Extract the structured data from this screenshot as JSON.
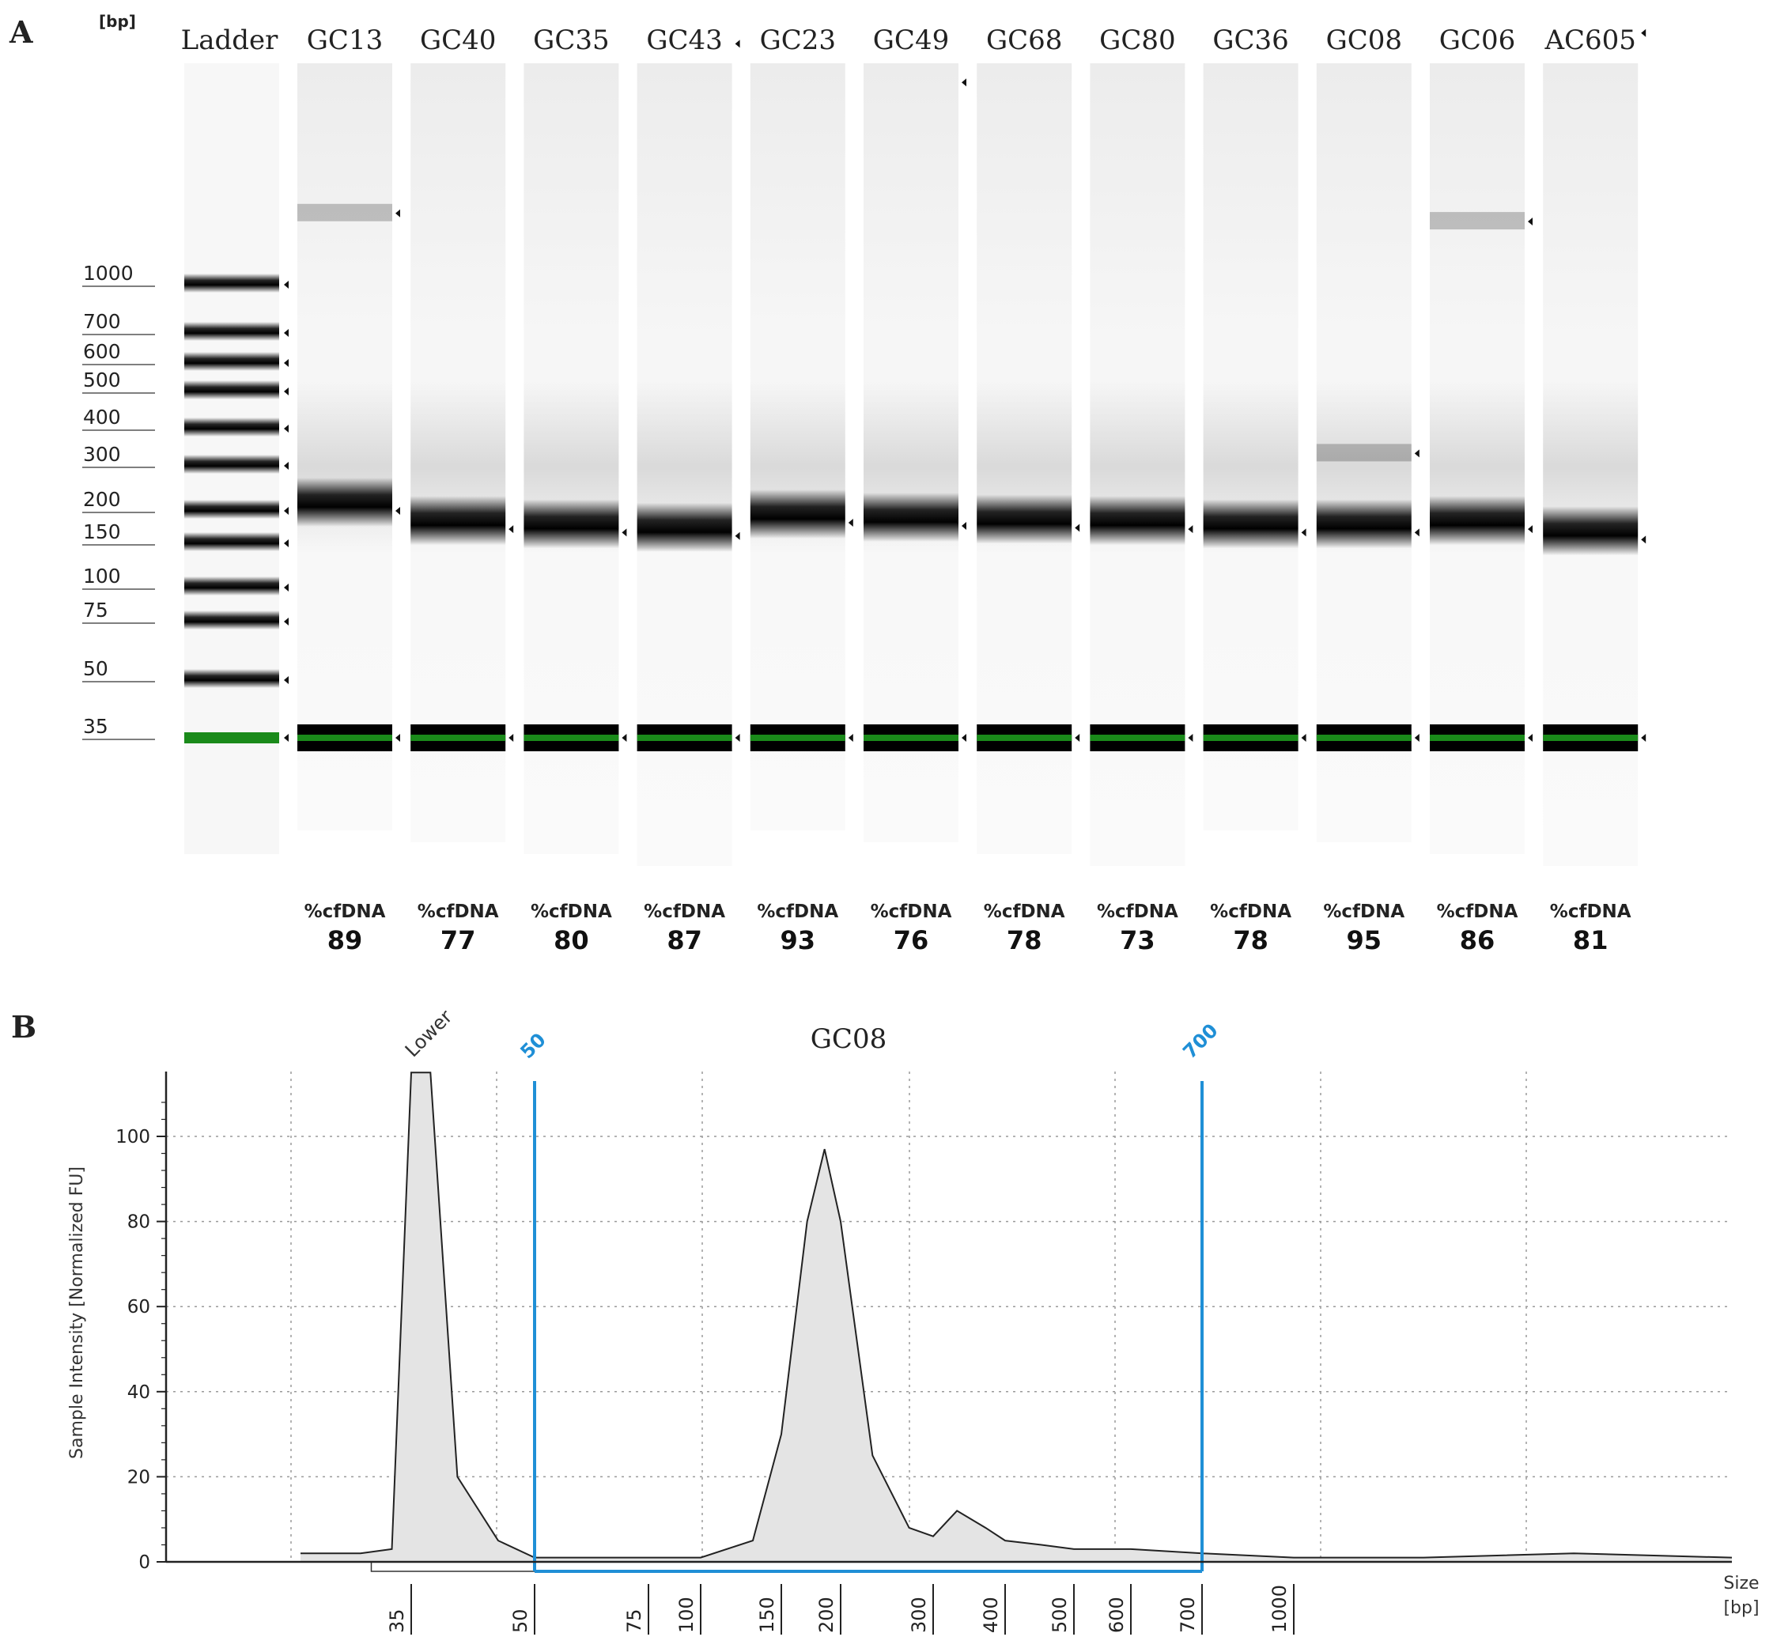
{
  "panel_a": {
    "panel_letter": "A",
    "unit_label": "[bp]",
    "ladder_lane_label": "Ladder",
    "size_labels": [
      "1000",
      "700",
      "600",
      "500",
      "400",
      "300",
      "200",
      "150",
      "100",
      "75",
      "50",
      "35"
    ],
    "lanes": [
      {
        "name": "GC13",
        "cfdna_label": "%cfDNA",
        "cfdna_value": "89"
      },
      {
        "name": "GC40",
        "cfdna_label": "%cfDNA",
        "cfdna_value": "77"
      },
      {
        "name": "GC35",
        "cfdna_label": "%cfDNA",
        "cfdna_value": "80"
      },
      {
        "name": "GC43",
        "cfdna_label": "%cfDNA",
        "cfdna_value": "87"
      },
      {
        "name": "GC23",
        "cfdna_label": "%cfDNA",
        "cfdna_value": "93"
      },
      {
        "name": "GC49",
        "cfdna_label": "%cfDNA",
        "cfdna_value": "76"
      },
      {
        "name": "GC68",
        "cfdna_label": "%cfDNA",
        "cfdna_value": "78"
      },
      {
        "name": "GC80",
        "cfdna_label": "%cfDNA",
        "cfdna_value": "73"
      },
      {
        "name": "GC36",
        "cfdna_label": "%cfDNA",
        "cfdna_value": "78"
      },
      {
        "name": "GC08",
        "cfdna_label": "%cfDNA",
        "cfdna_value": "95"
      },
      {
        "name": "GC06",
        "cfdna_label": "%cfDNA",
        "cfdna_value": "86"
      },
      {
        "name": "AC605",
        "cfdna_label": "%cfDNA",
        "cfdna_value": "81"
      }
    ],
    "colors": {
      "marker_band": "#1a8a1a",
      "band": "#000000"
    }
  },
  "panel_b": {
    "panel_letter": "B",
    "title": "GC08",
    "ylabel": "Sample Intensity [Normalized FU]",
    "xlabel_line1": "Size",
    "xlabel_line2": "[bp]",
    "lower_marker_label": "Lower",
    "region_start_label": "50",
    "region_end_label": "700",
    "y_ticks": [
      "0",
      "20",
      "40",
      "60",
      "80",
      "100"
    ],
    "x_ticks": [
      "35",
      "50",
      "75",
      "100",
      "150",
      "200",
      "300",
      "400",
      "500",
      "600",
      "700",
      "1000"
    ],
    "colors": {
      "region": "#1f8fd6",
      "fill": "#e4e4e4",
      "line": "#222222",
      "grid": "#9a9a9a"
    }
  },
  "chart_data": {
    "type": "area",
    "title": "GC08",
    "ylabel": "Sample Intensity [Normalized FU]",
    "xlabel": "Size [bp]",
    "ylim": [
      0,
      115
    ],
    "x_scale": "log (electropherogram size axis)",
    "grid": true,
    "region": [
      50,
      700
    ],
    "series": [
      {
        "name": "GC08",
        "x": [
          25,
          30,
          33,
          35,
          37,
          40,
          45,
          50,
          60,
          75,
          100,
          130,
          150,
          170,
          185,
          200,
          230,
          270,
          300,
          330,
          370,
          400,
          450,
          500,
          600,
          700,
          1000,
          2000,
          5000,
          10000
        ],
        "y": [
          2,
          2,
          3,
          115,
          115,
          20,
          5,
          1,
          1,
          1,
          1,
          5,
          30,
          80,
          97,
          80,
          25,
          8,
          6,
          12,
          8,
          5,
          4,
          3,
          3,
          2,
          1,
          1,
          2,
          1
        ]
      }
    ]
  }
}
